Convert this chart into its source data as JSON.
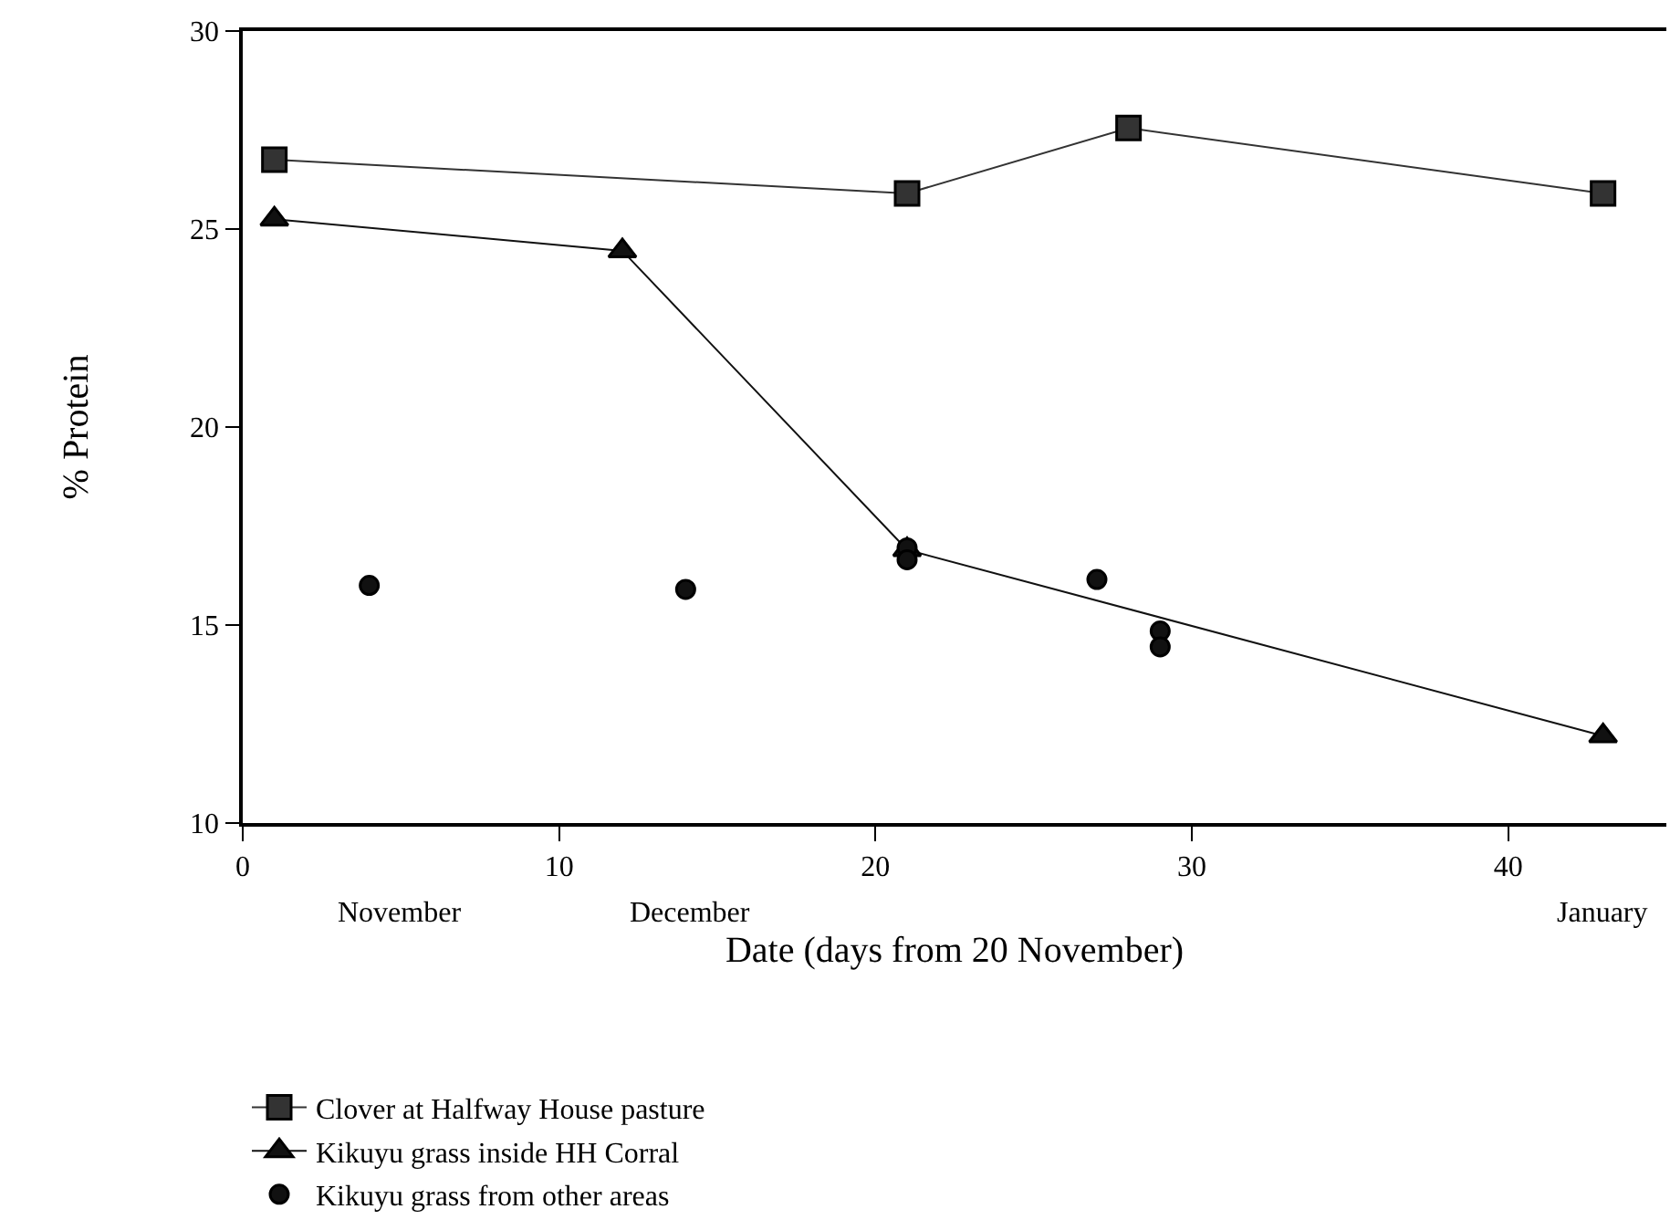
{
  "chart_data": {
    "type": "line",
    "xlabel": "Date (days from 20 November)",
    "ylabel": "% Protein",
    "xlim": [
      0,
      45
    ],
    "xticks": [
      0,
      10,
      20,
      30,
      40
    ],
    "ylim": [
      10,
      30
    ],
    "yticks": [
      10,
      15,
      20,
      25,
      30
    ],
    "legend": "bottom left",
    "series": [
      {
        "name": "Clover at Halfway House pasture",
        "color": "#333333",
        "marker": "square",
        "x": [
          1,
          21,
          28,
          43
        ],
        "values": [
          26.75,
          25.9,
          27.55,
          25.9
        ]
      },
      {
        "name": "Kikuyu grass inside HH Corral",
        "color": "#111111",
        "marker": "triangle",
        "x": [
          1,
          12,
          21,
          43
        ],
        "values": [
          25.25,
          24.45,
          16.9,
          12.2
        ]
      },
      {
        "name": "Kikuyu grass from other areas",
        "type": "scatter",
        "color": "#111111",
        "marker": "circle",
        "x": [
          4,
          14,
          21,
          21,
          27,
          29,
          29
        ],
        "values": [
          16.0,
          15.9,
          16.95,
          16.65,
          16.15,
          14.85,
          14.45
        ]
      }
    ],
    "annotations": [
      "November",
      "December",
      "January"
    ]
  }
}
